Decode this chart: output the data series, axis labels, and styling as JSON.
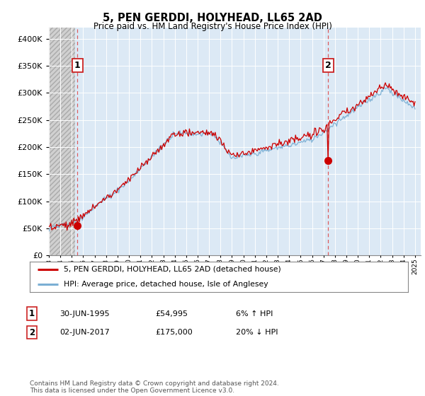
{
  "title": "5, PEN GERDDI, HOLYHEAD, LL65 2AD",
  "subtitle": "Price paid vs. HM Land Registry's House Price Index (HPI)",
  "legend_line1": "5, PEN GERDDI, HOLYHEAD, LL65 2AD (detached house)",
  "legend_line2": "HPI: Average price, detached house, Isle of Anglesey",
  "annotation1_date": "30-JUN-1995",
  "annotation1_price": "£54,995",
  "annotation1_hpi": "6% ↑ HPI",
  "annotation1_year": 1995.5,
  "annotation1_value": 54995,
  "annotation2_date": "02-JUN-2017",
  "annotation2_price": "£175,000",
  "annotation2_hpi": "20% ↓ HPI",
  "annotation2_year": 2017.42,
  "annotation2_value": 175000,
  "footer": "Contains HM Land Registry data © Crown copyright and database right 2024.\nThis data is licensed under the Open Government Licence v3.0.",
  "red_line_color": "#cc0000",
  "blue_line_color": "#7bafd4",
  "plot_bg": "#dce9f5",
  "hatch_bg": "#d0d0d0",
  "grid_color": "#ffffff",
  "ylim_max": 420000
}
